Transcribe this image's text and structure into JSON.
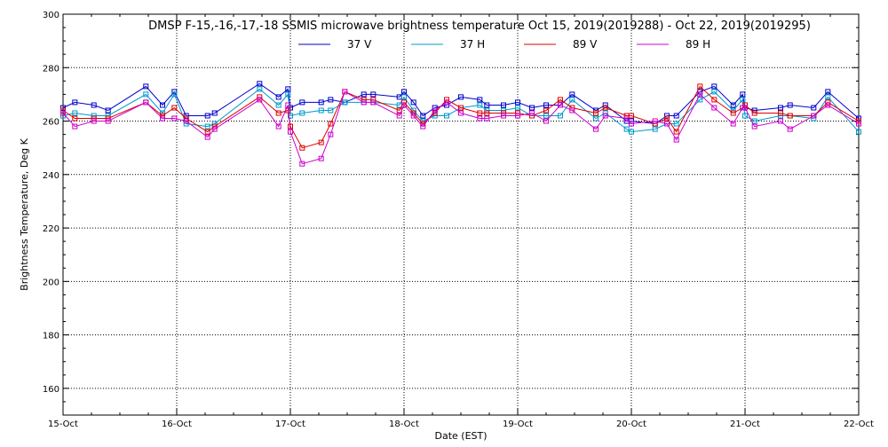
{
  "chart_data": {
    "type": "line",
    "title": "DMSP F-15,-16,-17,-18 SSMIS microwave brightness temperature Oct 15, 2019(2019288) - Oct 22, 2019(2019295)",
    "xlabel": "Date (EST)",
    "ylabel": "Brightness Temperature, Deg K",
    "xlim": [
      "2019-10-15",
      "2019-10-22"
    ],
    "ylim": [
      150,
      300
    ],
    "x_ticks": [
      "15-Oct",
      "16-Oct",
      "17-Oct",
      "18-Oct",
      "19-Oct",
      "20-Oct",
      "21-Oct",
      "22-Oct"
    ],
    "y_ticks": [
      160,
      180,
      200,
      220,
      240,
      260,
      280,
      300
    ],
    "grid": true,
    "legend_position": "top-center",
    "x": [
      "2019-10-15 00:00",
      "2019-10-15 02:30",
      "2019-10-15 06:30",
      "2019-10-15 09:30",
      "2019-10-15 17:30",
      "2019-10-15 21:00",
      "2019-10-15 23:30",
      "2019-10-16 02:00",
      "2019-10-16 06:30",
      "2019-10-16 08:00",
      "2019-10-16 17:30",
      "2019-10-16 21:30",
      "2019-10-16 23:30",
      "2019-10-17 00:00",
      "2019-10-17 02:30",
      "2019-10-17 06:30",
      "2019-10-17 08:30",
      "2019-10-17 11:30",
      "2019-10-17 15:30",
      "2019-10-17 17:30",
      "2019-10-17 23:00",
      "2019-10-18 00:00",
      "2019-10-18 02:00",
      "2019-10-18 04:00",
      "2019-10-18 06:30",
      "2019-10-18 09:00",
      "2019-10-18 12:00",
      "2019-10-18 16:00",
      "2019-10-18 17:30",
      "2019-10-18 21:00",
      "2019-10-19 00:00",
      "2019-10-19 03:00",
      "2019-10-19 06:00",
      "2019-10-19 09:00",
      "2019-10-19 11:30",
      "2019-10-19 16:30",
      "2019-10-19 18:30",
      "2019-10-19 23:00",
      "2019-10-20 00:00",
      "2019-10-20 05:00",
      "2019-10-20 07:30",
      "2019-10-20 09:30",
      "2019-10-20 14:30",
      "2019-10-20 17:30",
      "2019-10-20 21:30",
      "2019-10-20 23:30",
      "2019-10-21 00:00",
      "2019-10-21 02:00",
      "2019-10-21 07:30",
      "2019-10-21 09:30",
      "2019-10-21 14:30",
      "2019-10-21 17:30",
      "2019-10-22 00:00"
    ],
    "series": [
      {
        "name": "37 V",
        "color": "#0000cc",
        "values": [
          265,
          267,
          266,
          264,
          273,
          266,
          271,
          262,
          262,
          263,
          274,
          269,
          272,
          265,
          267,
          267,
          268,
          267,
          270,
          270,
          269,
          271,
          267,
          262,
          265,
          266,
          269,
          268,
          266,
          266,
          267,
          265,
          266,
          266,
          270,
          264,
          266,
          260,
          260,
          259,
          262,
          262,
          271,
          273,
          266,
          270,
          265,
          264,
          265,
          266,
          265,
          271,
          261
        ]
      },
      {
        "name": "37 H",
        "color": "#0099cc",
        "values": [
          262,
          263,
          262,
          262,
          270,
          263,
          270,
          259,
          258,
          259,
          272,
          266,
          270,
          262,
          263,
          264,
          264,
          267,
          267,
          267,
          266,
          269,
          264,
          260,
          262,
          262,
          265,
          266,
          264,
          264,
          265,
          262,
          262,
          262,
          268,
          261,
          263,
          257,
          256,
          257,
          259,
          259,
          268,
          271,
          264,
          268,
          262,
          260,
          262,
          262,
          261,
          269,
          256
        ]
      },
      {
        "name": "89 V",
        "color": "#dd0000",
        "values": [
          264,
          261,
          261,
          261,
          267,
          262,
          265,
          261,
          256,
          258,
          269,
          263,
          264,
          258,
          250,
          252,
          259,
          271,
          268,
          268,
          264,
          267,
          263,
          259,
          263,
          268,
          265,
          263,
          263,
          263,
          263,
          262,
          264,
          268,
          265,
          263,
          265,
          262,
          262,
          259,
          261,
          256,
          273,
          268,
          263,
          265,
          266,
          263,
          263,
          262,
          262,
          267,
          260
        ]
      },
      {
        "name": "89 H",
        "color": "#cc00cc",
        "values": [
          263,
          258,
          260,
          260,
          267,
          261,
          261,
          260,
          254,
          257,
          268,
          258,
          266,
          256,
          244,
          246,
          255,
          271,
          267,
          267,
          262,
          266,
          262,
          258,
          264,
          267,
          263,
          261,
          261,
          262,
          262,
          263,
          260,
          266,
          264,
          257,
          262,
          261,
          259,
          260,
          259,
          253,
          270,
          265,
          259,
          265,
          265,
          258,
          260,
          257,
          262,
          266,
          259
        ]
      }
    ]
  }
}
